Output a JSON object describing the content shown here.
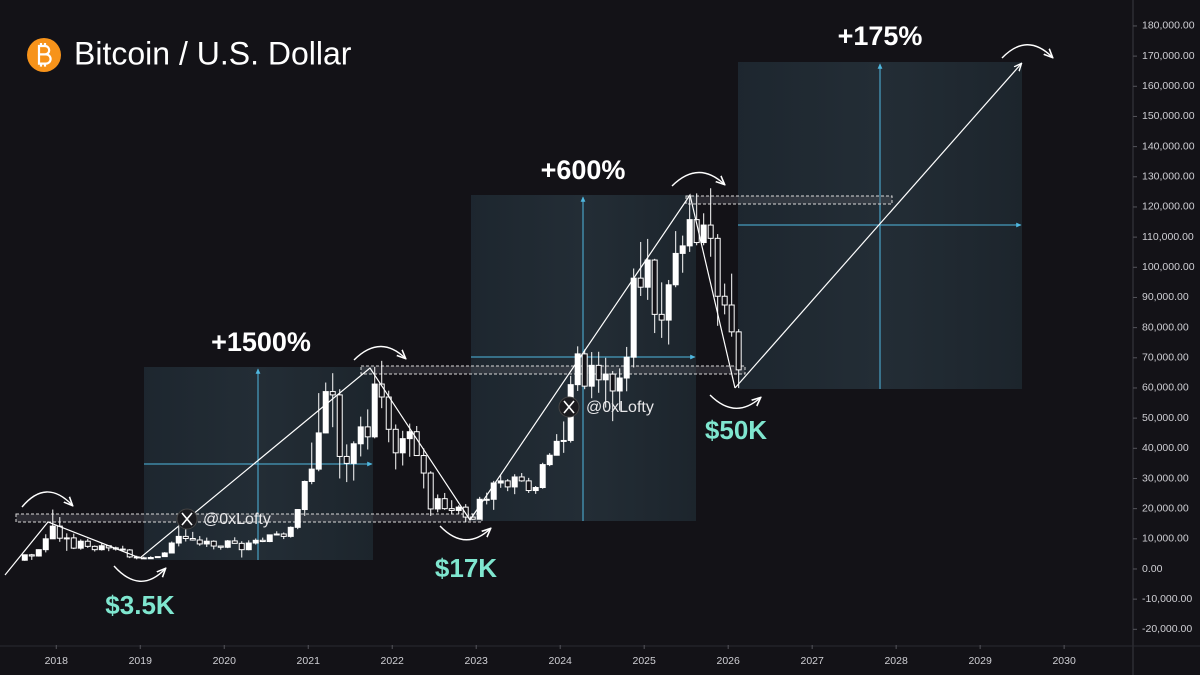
{
  "chart_data": {
    "type": "candlestick",
    "title": "Bitcoin / U.S. Dollar",
    "watermark": "@0xLofty",
    "annotations": {
      "gains": [
        "+1500%",
        "+600%",
        "+175%"
      ],
      "lows": [
        "$3.5K",
        "$17K",
        "$50K"
      ]
    },
    "up_color": "#ffffff",
    "down_color": "#ffffff",
    "x": [
      "2017-08",
      "2017-09",
      "2017-10",
      "2017-11",
      "2017-12",
      "2018-01",
      "2018-02",
      "2018-03",
      "2018-04",
      "2018-05",
      "2018-06",
      "2018-07",
      "2018-08",
      "2018-09",
      "2018-10",
      "2018-11",
      "2018-12",
      "2019-01",
      "2019-02",
      "2019-03",
      "2019-04",
      "2019-05",
      "2019-06",
      "2019-07",
      "2019-08",
      "2019-09",
      "2019-10",
      "2019-11",
      "2019-12",
      "2020-01",
      "2020-02",
      "2020-03",
      "2020-04",
      "2020-05",
      "2020-06",
      "2020-07",
      "2020-08",
      "2020-09",
      "2020-10",
      "2020-11",
      "2020-12",
      "2021-01",
      "2021-02",
      "2021-03",
      "2021-04",
      "2021-05",
      "2021-06",
      "2021-07",
      "2021-08",
      "2021-09",
      "2021-10",
      "2021-11",
      "2021-12",
      "2022-01",
      "2022-02",
      "2022-03",
      "2022-04",
      "2022-05",
      "2022-06",
      "2022-07",
      "2022-08",
      "2022-09",
      "2022-10",
      "2022-11",
      "2022-12",
      "2023-01",
      "2023-02",
      "2023-03",
      "2023-04",
      "2023-05",
      "2023-06",
      "2023-07",
      "2023-08",
      "2023-09",
      "2023-10",
      "2023-11",
      "2023-12",
      "2024-01",
      "2024-02",
      "2024-03",
      "2024-04",
      "2024-05",
      "2024-06",
      "2024-07",
      "2024-08",
      "2024-09",
      "2024-10",
      "2024-11",
      "2024-12",
      "2025-01",
      "2025-02",
      "2025-03",
      "2025-04",
      "2025-05",
      "2025-06",
      "2025-07",
      "2025-08",
      "2025-09",
      "2025-10",
      "2025-11",
      "2025-12",
      "2026-01",
      "2026-02"
    ],
    "open": [
      2900,
      4700,
      4300,
      6400,
      10000,
      14200,
      10200,
      10300,
      6900,
      9200,
      7500,
      6400,
      7700,
      7000,
      6600,
      6300,
      4000,
      3700,
      3400,
      3800,
      4100,
      5300,
      8600,
      10800,
      10100,
      9600,
      8300,
      9200,
      7600,
      7200,
      9300,
      8500,
      6400,
      8600,
      9500,
      9100,
      11300,
      11600,
      10800,
      13800,
      19700,
      29000,
      33100,
      45100,
      58800,
      57700,
      37300,
      35000,
      41500,
      47100,
      43800,
      61300,
      57000,
      46300,
      38500,
      43200,
      45500,
      37600,
      31800,
      19900,
      23300,
      20000,
      19400,
      20500,
      17200,
      16500,
      23100,
      23100,
      28500,
      29200,
      27200,
      30500,
      29200,
      26000,
      27000,
      34600,
      37700,
      42300,
      42600,
      61100,
      71300,
      60600,
      67500,
      62700,
      64600,
      59000,
      63300,
      70200,
      96400,
      93400,
      102400,
      84400,
      82500,
      94200,
      104600,
      107100,
      115800,
      108200,
      114000,
      109600,
      90400,
      87500,
      78600
    ],
    "high": [
      4700,
      5000,
      6500,
      11500,
      19700,
      17200,
      11800,
      11700,
      9800,
      10000,
      7800,
      8500,
      7800,
      7400,
      7700,
      6600,
      4400,
      4100,
      4200,
      4100,
      5600,
      9100,
      13900,
      13200,
      12300,
      10900,
      10400,
      9500,
      7700,
      9600,
      10500,
      9200,
      9500,
      10100,
      10400,
      11400,
      12500,
      12100,
      14100,
      19800,
      29300,
      41900,
      58300,
      61800,
      64900,
      59600,
      41300,
      42300,
      50500,
      52900,
      67000,
      69000,
      59100,
      47900,
      45800,
      48200,
      47400,
      40000,
      32400,
      24700,
      25200,
      22800,
      21100,
      21500,
      18400,
      23900,
      25300,
      29200,
      31000,
      29800,
      31400,
      31800,
      30200,
      27500,
      35200,
      38400,
      44700,
      48900,
      64000,
      73800,
      72800,
      71900,
      72000,
      70000,
      65600,
      66500,
      73600,
      99600,
      108400,
      109400,
      102800,
      95000,
      95800,
      112000,
      110500,
      123200,
      124500,
      117900,
      126200,
      111000,
      94600,
      97900,
      79500
    ],
    "low": [
      2700,
      3000,
      4100,
      5500,
      10000,
      9000,
      6000,
      6600,
      6400,
      7000,
      5800,
      6100,
      5900,
      6100,
      6200,
      3600,
      3200,
      3400,
      3400,
      3700,
      4100,
      5300,
      7500,
      9100,
      9400,
      7700,
      7300,
      6500,
      6400,
      6900,
      8400,
      3800,
      6200,
      8100,
      8900,
      8900,
      11100,
      9900,
      10400,
      13200,
      17600,
      28100,
      32400,
      45000,
      47000,
      30000,
      28800,
      29300,
      37300,
      39600,
      43300,
      53300,
      42000,
      33000,
      34300,
      37200,
      37600,
      26700,
      17600,
      18800,
      19600,
      18200,
      18200,
      15500,
      16300,
      16500,
      21400,
      19600,
      26900,
      25800,
      24800,
      28900,
      25200,
      24900,
      26600,
      34100,
      37600,
      38500,
      41900,
      59000,
      59600,
      56600,
      58400,
      53500,
      49000,
      52500,
      58900,
      66800,
      90500,
      89200,
      78200,
      76600,
      74400,
      93400,
      98200,
      105100,
      107300,
      107300,
      103500,
      80600,
      84400,
      77000,
      60000
    ],
    "close": [
      4700,
      4300,
      6400,
      10000,
      14200,
      10200,
      10300,
      6900,
      9200,
      7500,
      6400,
      7700,
      7000,
      6600,
      6300,
      4000,
      3700,
      3400,
      3800,
      4100,
      5300,
      8600,
      10800,
      10100,
      9600,
      8300,
      9200,
      7600,
      7200,
      9300,
      8500,
      6400,
      8600,
      9500,
      9100,
      11300,
      11600,
      10800,
      13800,
      19700,
      29000,
      33100,
      45100,
      58800,
      57700,
      37300,
      35000,
      41500,
      47100,
      43800,
      61300,
      57000,
      46300,
      38500,
      43200,
      45500,
      37600,
      31800,
      19900,
      23300,
      20000,
      19400,
      20500,
      17200,
      16500,
      23100,
      23100,
      28500,
      29200,
      27200,
      30500,
      29200,
      26000,
      27000,
      34600,
      37700,
      42300,
      42600,
      61100,
      71300,
      60600,
      67500,
      62700,
      64600,
      59000,
      63300,
      70200,
      96400,
      93400,
      102400,
      84400,
      82500,
      94200,
      104600,
      107100,
      115800,
      108200,
      114000,
      109600,
      90400,
      87500,
      78600,
      66000
    ],
    "xlim": [
      2017.33,
      2030.82
    ],
    "xticks": [
      2018,
      2019,
      2020,
      2021,
      2022,
      2023,
      2024,
      2025,
      2026,
      2027,
      2028,
      2029,
      2030
    ],
    "ylim": [
      -25200,
      188600
    ],
    "yticks": [
      {
        "value": -20000,
        "label": "-20,000.00"
      },
      {
        "value": -10000,
        "label": "-10,000.00"
      },
      {
        "value": 0,
        "label": "0.00"
      },
      {
        "value": 10000,
        "label": "10,000.00"
      },
      {
        "value": 20000,
        "label": "20,000.00"
      },
      {
        "value": 30000,
        "label": "30,000.00"
      },
      {
        "value": 40000,
        "label": "40,000.00"
      },
      {
        "value": 50000,
        "label": "50,000.00"
      },
      {
        "value": 60000,
        "label": "60,000.00"
      },
      {
        "value": 70000,
        "label": "70,000.00"
      },
      {
        "value": 80000,
        "label": "80,000.00"
      },
      {
        "value": 90000,
        "label": "90,000.00"
      },
      {
        "value": 100000,
        "label": "100,000.00"
      },
      {
        "value": 110000,
        "label": "110,000.00"
      },
      {
        "value": 120000,
        "label": "120,000.00"
      },
      {
        "value": 130000,
        "label": "130,000.00"
      },
      {
        "value": 140000,
        "label": "140,000.00"
      },
      {
        "value": 150000,
        "label": "150,000.00"
      },
      {
        "value": 160000,
        "label": "160,000.00"
      },
      {
        "value": 170000,
        "label": "170,000.00"
      },
      {
        "value": 180000,
        "label": "180,000.00"
      }
    ]
  }
}
